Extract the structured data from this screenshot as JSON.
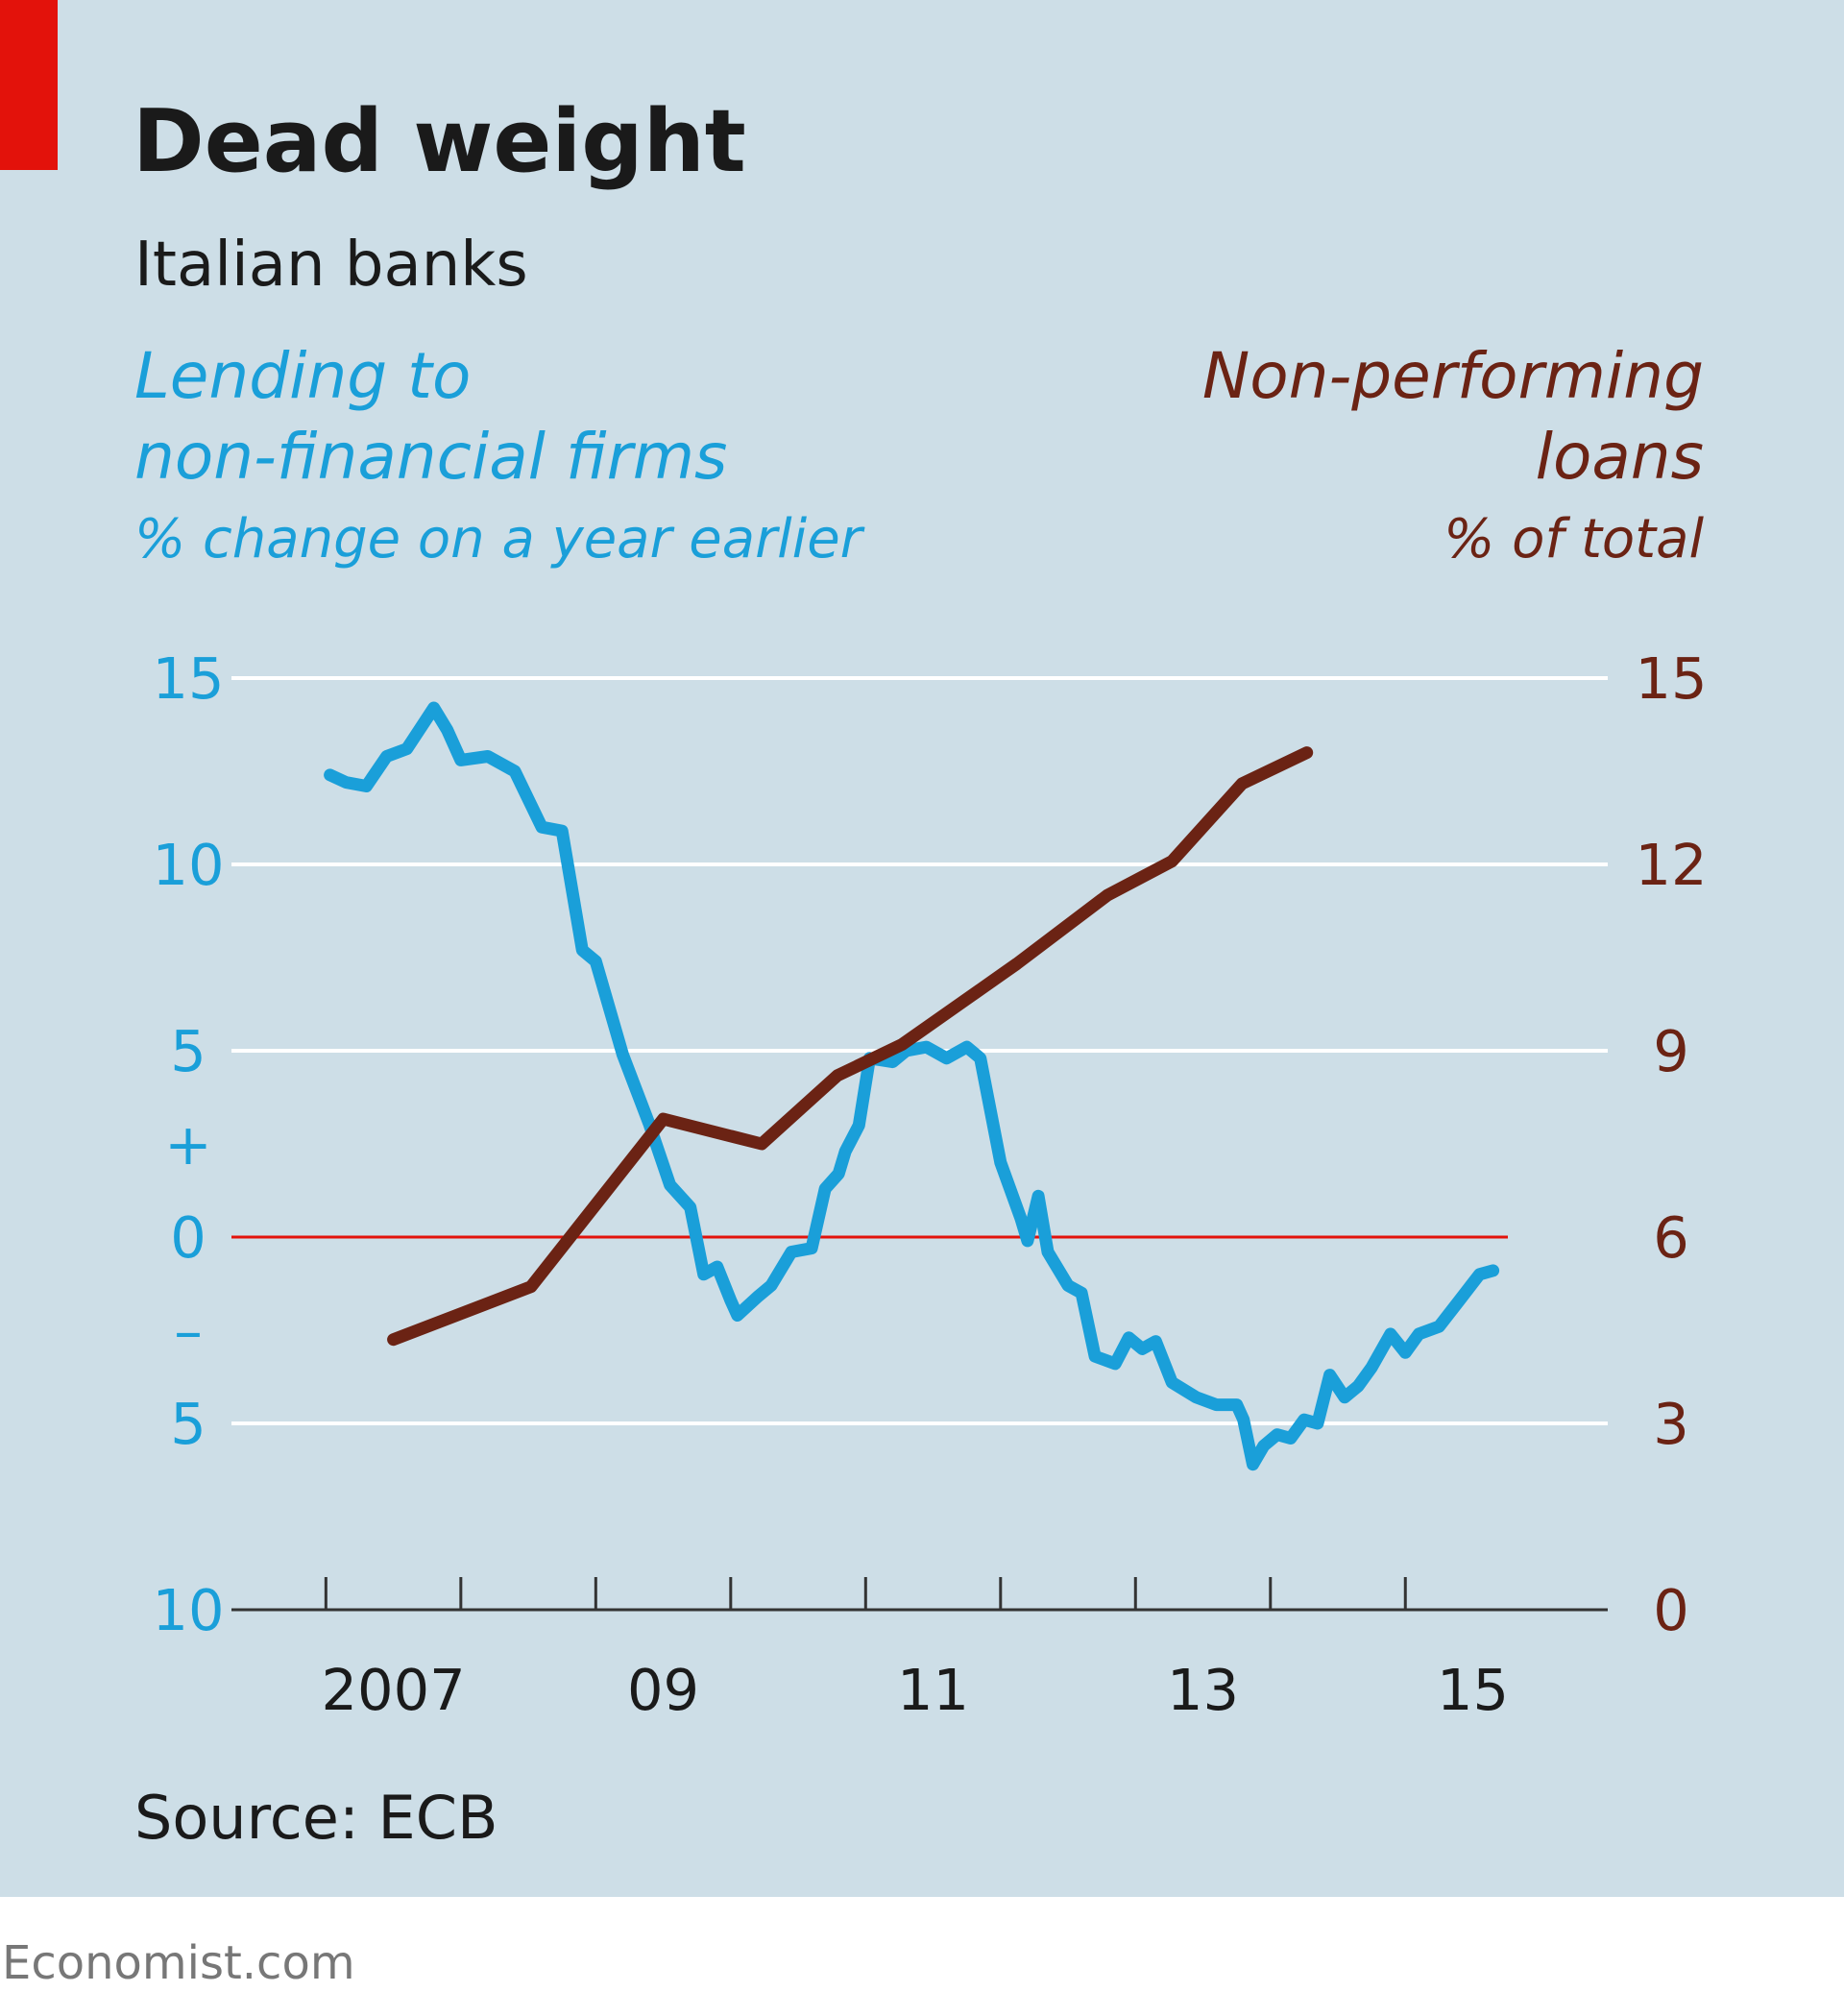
{
  "chart_data": {
    "type": "line",
    "title": "Dead weight",
    "subtitle": "Italian banks",
    "y_label": [
      "Lending to",
      "non-financial firms"
    ],
    "y_unit": "% change on a year earlier",
    "y2_label": [
      "Non-performing",
      "loans"
    ],
    "y2_unit": "% of total",
    "source": "Source: ECB",
    "footer": "Economist.com",
    "sign_labels": [
      "+",
      "–"
    ],
    "xlim": [
      2006.3,
      2016.5
    ],
    "xticks": [
      2007,
      2008,
      2009,
      2010,
      2011,
      2012,
      2013,
      2014,
      2015
    ],
    "xtick_labels": [
      {
        "value": 2007.5,
        "label": "2007"
      },
      {
        "value": 2009.5,
        "label": "09"
      },
      {
        "value": 2011.5,
        "label": "11"
      },
      {
        "value": 2013.5,
        "label": "13"
      },
      {
        "value": 2015.5,
        "label": "15"
      }
    ],
    "ylim": [
      -10,
      15
    ],
    "yticks": [
      15,
      10,
      5,
      0,
      {
        "value": -5,
        "label": "5"
      },
      {
        "value": -10,
        "label": "10"
      }
    ],
    "y2lim": [
      0,
      15
    ],
    "y2ticks": [
      15,
      12,
      9,
      6,
      3,
      0
    ],
    "grid": true,
    "series": [
      {
        "color": "#1a9fd9",
        "x": [
          2007.03,
          2007.15,
          2007.3,
          2007.45,
          2007.6,
          2007.8,
          2007.9,
          2008.0,
          2008.2,
          2008.4,
          2008.6,
          2008.75,
          2008.9,
          2009.0,
          2009.2,
          2009.4,
          2009.55,
          2009.7,
          2009.8,
          2009.9,
          2010.0,
          2010.05,
          2010.2,
          2010.3,
          2010.45,
          2010.6,
          2010.7,
          2010.8,
          2010.85,
          2010.95,
          2011.03,
          2011.2,
          2011.3,
          2011.45,
          2011.6,
          2011.75,
          2011.85,
          2012.0,
          2012.15,
          2012.2,
          2012.28,
          2012.35,
          2012.5,
          2012.6,
          2012.7,
          2012.85,
          2012.95,
          2013.05,
          2013.15,
          2013.27,
          2013.45,
          2013.6,
          2013.75,
          2013.8,
          2013.87,
          2013.95,
          2014.05,
          2014.15,
          2014.25,
          2014.35,
          2014.44,
          2014.55,
          2014.65,
          2014.75,
          2014.89,
          2015.0,
          2015.1,
          2015.25,
          2015.4,
          2015.55,
          2015.65
        ],
        "values": [
          12.4,
          12.2,
          12.1,
          12.9,
          13.1,
          14.2,
          13.6,
          12.8,
          12.9,
          12.5,
          11.0,
          10.9,
          7.7,
          7.4,
          4.9,
          3.0,
          1.4,
          0.8,
          -1.0,
          -0.8,
          -1.7,
          -2.1,
          -1.6,
          -1.3,
          -0.4,
          -0.3,
          1.3,
          1.7,
          2.3,
          3.0,
          4.8,
          4.7,
          5.0,
          5.1,
          4.8,
          5.1,
          4.8,
          2.0,
          0.5,
          -0.1,
          1.1,
          -0.4,
          -1.3,
          -1.5,
          -3.2,
          -3.4,
          -2.7,
          -3.0,
          -2.8,
          -3.9,
          -4.3,
          -4.5,
          -4.5,
          -4.9,
          -6.1,
          -5.6,
          -5.3,
          -5.4,
          -4.9,
          -5.0,
          -3.7,
          -4.3,
          -4.0,
          -3.5,
          -2.6,
          -3.1,
          -2.6,
          -2.4,
          -1.7,
          -1.0,
          -0.9
        ]
      },
      {
        "color": "#6b2314",
        "axis": "y2",
        "x": [
          2007.5,
          2008.52,
          2009.5,
          2010.23,
          2010.79,
          2011.27,
          2012.12,
          2012.79,
          2013.27,
          2013.79,
          2014.27
        ],
        "values": [
          4.35,
          5.2,
          7.9,
          7.5,
          8.6,
          9.1,
          10.4,
          11.5,
          12.05,
          13.3,
          13.8
        ]
      }
    ]
  }
}
